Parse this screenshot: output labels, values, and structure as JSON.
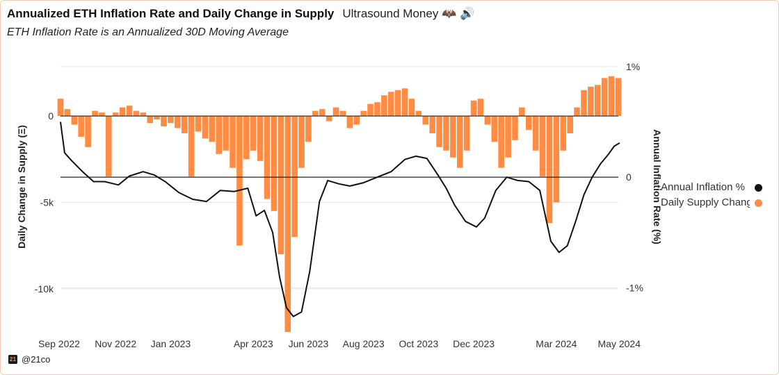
{
  "header": {
    "title": "Annualized ETH Inflation Rate and Daily Change in Supply",
    "source": "Ultrasound Money 🦇 🔊",
    "caption": "ETH Inflation Rate is an Annualized 30D Moving Average"
  },
  "footer": {
    "logo_text": "21",
    "handle": "@21co"
  },
  "colors": {
    "bars": "#ff8c42",
    "line": "#111111",
    "zero": "#222222",
    "grid": "#e6e6e6"
  },
  "chart_data": {
    "type": "bar+line",
    "title": "Annualized ETH Inflation Rate and Daily Change in Supply",
    "subtitle": "ETH Inflation Rate is an Annualized 30D Moving Average",
    "x_range": [
      "Sep 2022",
      "May 2024"
    ],
    "x_ticks": [
      "Sep 2022",
      "Nov 2022",
      "Jan 2023",
      "Apr 2023",
      "Jun 2023",
      "Aug 2023",
      "Oct 2023",
      "Dec 2023",
      "Mar 2024",
      "May 2024"
    ],
    "x_tick_months": [
      0,
      2,
      4,
      7,
      9,
      11,
      13,
      15,
      18,
      20
    ],
    "y_left": {
      "label": "Daily Change in Supply (Ξ)",
      "ticks": [
        "0",
        "-5k",
        "-10k"
      ],
      "tick_values": [
        0,
        -5000,
        -10000
      ],
      "range": [
        -12500,
        3500
      ]
    },
    "y_right": {
      "label": "Annual Inflation Rate (%)",
      "ticks": [
        "1%",
        "0",
        "-1%"
      ],
      "tick_values": [
        1,
        0,
        -1
      ],
      "range": [
        -1.4,
        1.1
      ]
    },
    "legend": [
      "Annual Inflation %",
      "Daily Supply Chang"
    ],
    "series": [
      {
        "name": "Daily Supply Change",
        "axis": "left",
        "kind": "bar",
        "x_months": [
          0,
          0.25,
          0.5,
          0.75,
          1,
          1.25,
          1.5,
          1.75,
          2,
          2.25,
          2.5,
          2.75,
          3,
          3.25,
          3.5,
          3.75,
          4,
          4.25,
          4.5,
          4.75,
          5,
          5.25,
          5.5,
          5.75,
          6,
          6.25,
          6.5,
          6.75,
          7,
          7.25,
          7.5,
          7.75,
          8,
          8.25,
          8.5,
          8.75,
          9,
          9.25,
          9.5,
          9.75,
          10,
          10.25,
          10.5,
          10.75,
          11,
          11.25,
          11.5,
          11.75,
          12,
          12.25,
          12.5,
          12.75,
          13,
          13.25,
          13.5,
          13.75,
          14,
          14.25,
          14.5,
          14.75,
          15,
          15.25,
          15.5,
          15.75,
          16,
          16.25,
          16.5,
          16.75,
          17,
          17.25,
          17.5,
          17.75,
          18,
          18.25,
          18.5,
          18.75,
          19,
          19.25,
          19.5,
          19.75,
          20,
          20.25
        ],
        "values": [
          1000,
          400,
          -500,
          -1200,
          -1800,
          300,
          200,
          -3500,
          200,
          500,
          600,
          300,
          200,
          -400,
          -200,
          -600,
          -400,
          -700,
          -1000,
          -3500,
          -900,
          -1300,
          -1500,
          -2200,
          -2000,
          -3000,
          -7500,
          -2500,
          -2000,
          -2600,
          -4800,
          -5500,
          -8000,
          -12500,
          -7000,
          -3000,
          -1500,
          300,
          400,
          -300,
          500,
          300,
          -700,
          -500,
          300,
          700,
          800,
          1200,
          1400,
          1500,
          1600,
          1000,
          300,
          -500,
          -1000,
          -1800,
          -2000,
          -2400,
          -3000,
          -2000,
          900,
          1000,
          -500,
          -1500,
          -3000,
          -2400,
          -1400,
          500,
          -800,
          -2000,
          -3500,
          -6200,
          -5000,
          -2000,
          -1000,
          500,
          1500,
          1700,
          1800,
          2200,
          2300,
          2200
        ]
      },
      {
        "name": "Annual Inflation %",
        "axis": "right",
        "kind": "line",
        "x_months": [
          0,
          0.15,
          0.4,
          0.8,
          1.2,
          1.6,
          2.1,
          2.5,
          3.0,
          3.4,
          3.8,
          4.3,
          4.8,
          5.3,
          5.8,
          6.3,
          6.8,
          7.1,
          7.4,
          7.7,
          7.95,
          8.2,
          8.45,
          8.75,
          9.05,
          9.4,
          9.7,
          10.1,
          10.5,
          11.0,
          11.5,
          12.0,
          12.5,
          12.9,
          13.3,
          13.7,
          14.0,
          14.3,
          14.7,
          15.1,
          15.4,
          15.8,
          16.2,
          16.6,
          17.0,
          17.4,
          17.8,
          18.1,
          18.4,
          18.7,
          19.0,
          19.3,
          19.6,
          19.9,
          20.1,
          20.3
        ],
        "values": [
          0.5,
          0.22,
          0.15,
          0.05,
          -0.04,
          -0.04,
          -0.07,
          0.01,
          0.05,
          0.02,
          -0.04,
          -0.14,
          -0.2,
          -0.22,
          -0.12,
          -0.13,
          -0.1,
          -0.35,
          -0.3,
          -0.5,
          -0.9,
          -1.18,
          -1.26,
          -1.22,
          -0.85,
          -0.22,
          -0.03,
          -0.06,
          -0.08,
          -0.05,
          0.0,
          0.05,
          0.16,
          0.19,
          0.17,
          0.02,
          -0.1,
          -0.25,
          -0.4,
          -0.45,
          -0.37,
          -0.12,
          0.0,
          -0.03,
          -0.04,
          -0.12,
          -0.58,
          -0.68,
          -0.62,
          -0.4,
          -0.16,
          0.0,
          0.12,
          0.21,
          0.28,
          0.31
        ]
      }
    ]
  }
}
